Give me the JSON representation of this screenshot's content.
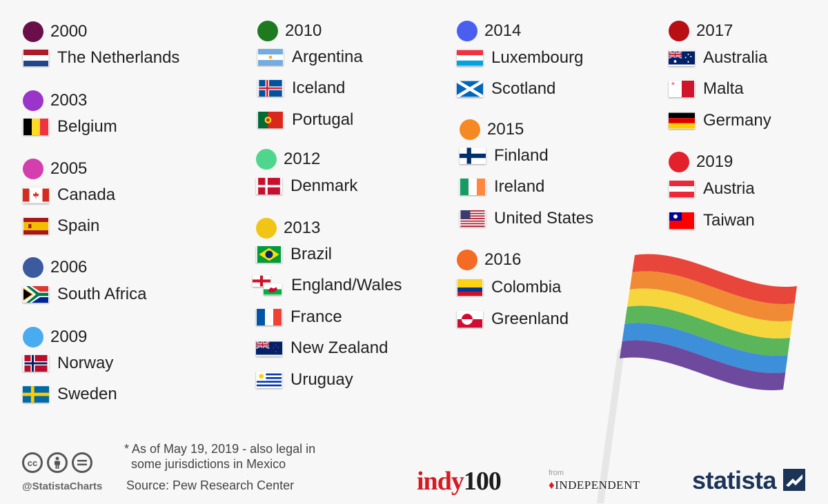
{
  "groups": [
    {
      "year": "2000",
      "color": "#6b0f4a",
      "countries": [
        "The Netherlands"
      ]
    },
    {
      "year": "2003",
      "color": "#9b35c9",
      "countries": [
        "Belgium"
      ]
    },
    {
      "year": "2005",
      "color": "#d43fae",
      "countries": [
        "Canada",
        "Spain"
      ]
    },
    {
      "year": "2006",
      "color": "#3b5aa0",
      "countries": [
        "South Africa"
      ]
    },
    {
      "year": "2009",
      "color": "#4aacf0",
      "countries": [
        "Norway",
        "Sweden"
      ]
    },
    {
      "year": "2010",
      "color": "#1f7a1f",
      "countries": [
        "Argentina",
        "Iceland",
        "Portugal"
      ]
    },
    {
      "year": "2012",
      "color": "#4fd68c",
      "countries": [
        "Denmark"
      ]
    },
    {
      "year": "2013",
      "color": "#f2c416",
      "countries": [
        "Brazil",
        "England/Wales",
        "France",
        "New Zealand",
        "Uruguay"
      ]
    },
    {
      "year": "2014",
      "color": "#4a5ef0",
      "countries": [
        "Luxembourg",
        "Scotland"
      ]
    },
    {
      "year": "2015",
      "color": "#f58a25",
      "countries": [
        "Finland",
        "Ireland",
        "United States"
      ]
    },
    {
      "year": "2016",
      "color": "#f56a25",
      "countries": [
        "Colombia",
        "Greenland"
      ]
    },
    {
      "year": "2017",
      "color": "#b80f14",
      "countries": [
        "Australia",
        "Malta",
        "Germany"
      ]
    },
    {
      "year": "2019",
      "color": "#e3212d",
      "countries": [
        "Austria",
        "Taiwan"
      ]
    }
  ],
  "footer": {
    "note_line1": "* As of May 19, 2019 - also legal in",
    "note_line2": "some jurisdictions in Mexico",
    "source": "Source: Pew Research Center",
    "handle": "@StatistaCharts"
  },
  "logos": {
    "indy_a": "indy",
    "indy_b": "100",
    "from": "from",
    "independent": "INDEPENDENT",
    "statista": "statista"
  },
  "rainbow_colors": [
    "#e8463a",
    "#f08a35",
    "#f5d63c",
    "#5bb55a",
    "#3d8fd9",
    "#6e4a9e"
  ]
}
